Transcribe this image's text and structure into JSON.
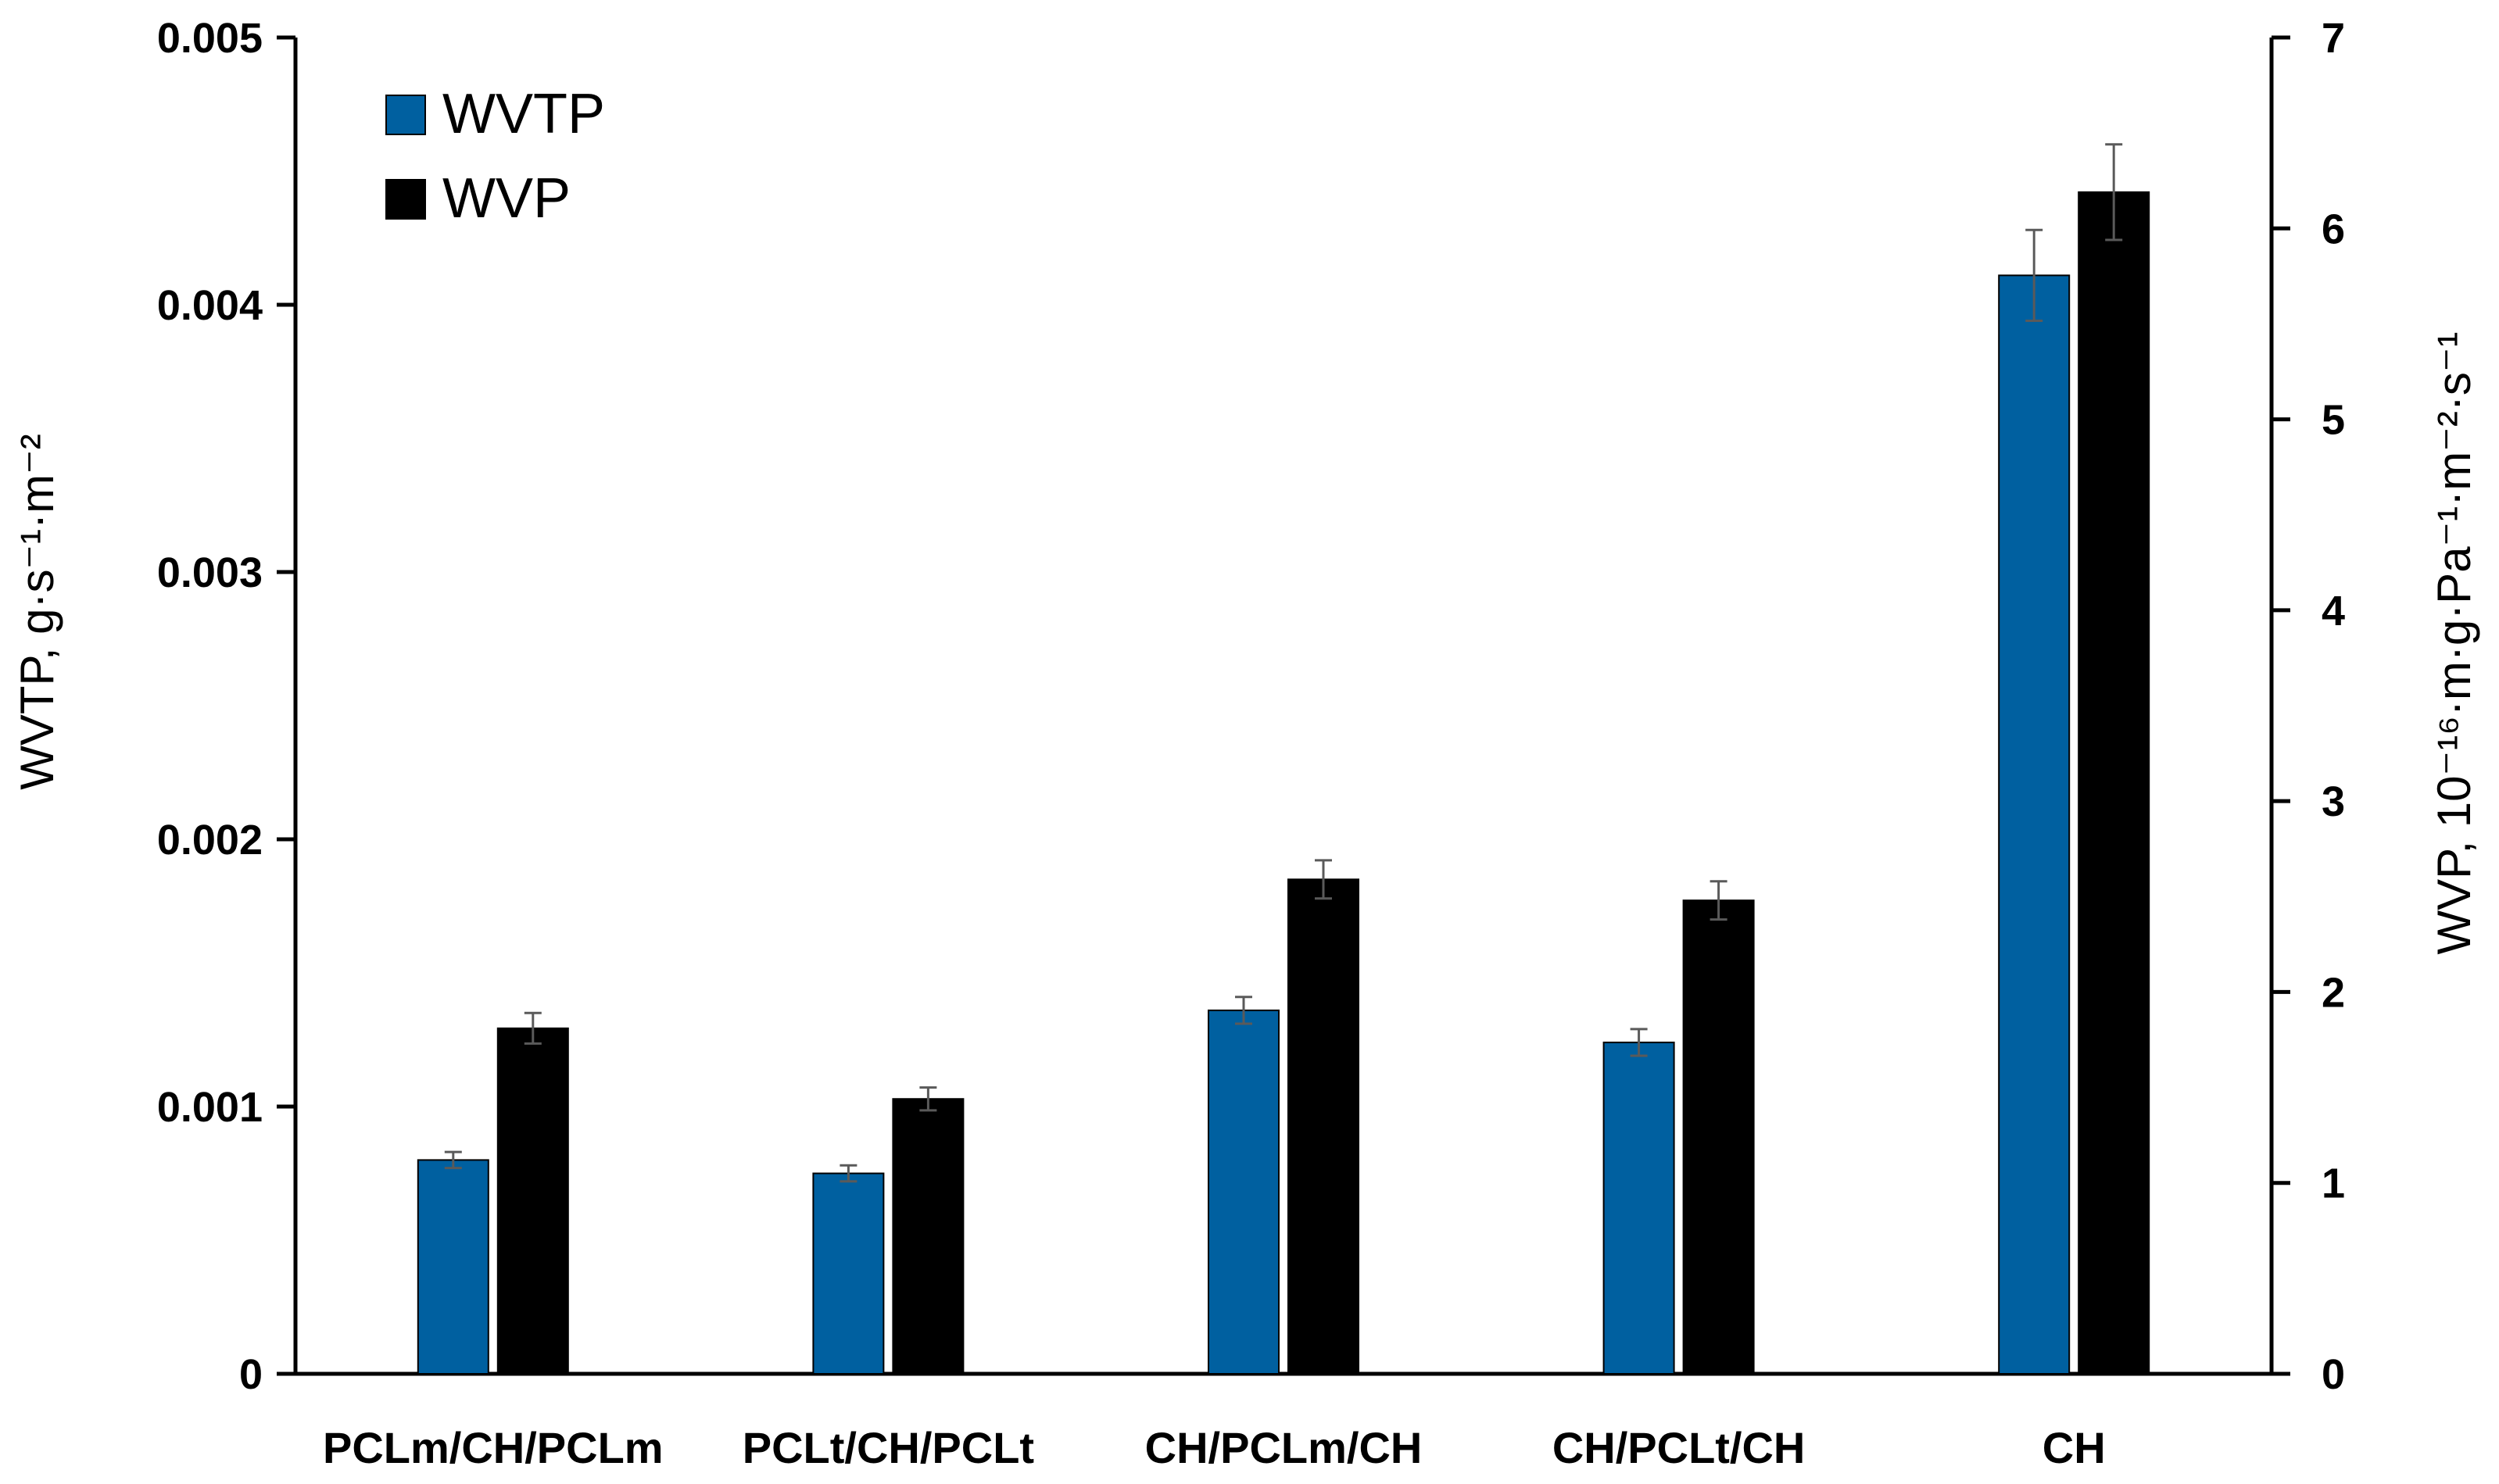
{
  "chart_data": {
    "type": "bar",
    "categories": [
      "PCLm/CH/PCLm",
      "PCLt/CH/PCLt",
      "CH/PCLm/CH",
      "CH/PCLt/CH",
      "CH"
    ],
    "series": [
      {
        "name": "WVTP",
        "axis": "left",
        "color": "#0060a0",
        "values": [
          0.0008,
          0.00075,
          0.00136,
          0.00124,
          0.00411
        ],
        "errors": [
          3e-05,
          3e-05,
          5e-05,
          5e-05,
          0.00017
        ]
      },
      {
        "name": "WVP",
        "axis": "right",
        "color": "#000000",
        "values": [
          1.81,
          1.44,
          2.59,
          2.48,
          6.19
        ],
        "errors": [
          0.08,
          0.06,
          0.1,
          0.1,
          0.25
        ]
      }
    ],
    "y_left": {
      "label": "WVTP, g·s⁻¹·m⁻²",
      "ylim": [
        0,
        0.005
      ],
      "ticks": [
        "0",
        "0.001",
        "0.002",
        "0.003",
        "0.004",
        "0.005"
      ]
    },
    "y_right": {
      "label": "WVP, 10⁻¹⁶·m·g·Pa⁻¹·m⁻²·s⁻¹",
      "ylim": [
        0,
        7
      ],
      "ticks": [
        "0",
        "1",
        "2",
        "3",
        "4",
        "5",
        "6",
        "7"
      ]
    },
    "grid": false,
    "legend_position": "top-left"
  }
}
